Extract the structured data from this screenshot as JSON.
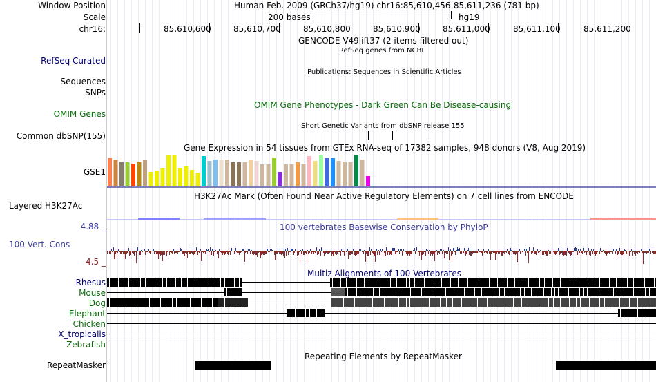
{
  "header": {
    "window_position_label": "Window Position",
    "window_position_text": "Human Feb. 2009 (GRCh37/hg19)   chr16:85,610,456-85,611,236 (781 bp)",
    "scale_label": "Scale",
    "scale_text": "200 bases",
    "scale_assembly": "hg19",
    "chrom_label": "chr16:",
    "ticks": [
      "85,610,600",
      "85,610,700",
      "85,610,800",
      "85,610,900",
      "85,611,000",
      "85,611,100",
      "85,611,200"
    ]
  },
  "tracks": {
    "gencode_title": "GENCODE V49lift37 (2 items filtered out)",
    "refseq_title": "RefSeq genes from NCBI",
    "refseq_label": "RefSeq Curated",
    "publications_title": "Publications: Sequences in Scientific Articles",
    "sequences_label": "Sequences",
    "snps_label": "SNPs",
    "omim_title": "OMIM Gene Phenotypes - Dark Green Can Be Disease-causing",
    "omim_label": "OMIM Genes",
    "dbsnp_title": "Short Genetic Variants from dbSNP release 155",
    "dbsnp_label": "Common dbSNP(155)",
    "gtex_title": "Gene Expression in 54 tissues from GTEx RNA-seq of 17382 samples, 948 donors (V8, Aug 2019)",
    "gtex_label": "GSE1",
    "gtex_bar_colors": [
      "#ff7f50",
      "#cd853f",
      "#8b7d6b",
      "#9acd32",
      "#ff4500",
      "#b8860b",
      "#c0a080",
      "#eeee00",
      "#eeee00",
      "#eeee00",
      "#eeee00",
      "#eeee00",
      "#eeee00",
      "#eeee00",
      "#eeee00",
      "#eeee00",
      "#00cdcd",
      "#9ac0cd",
      "#7ec0ee",
      "#eedfcc",
      "#cdb79e",
      "#8b7355",
      "#8b7355",
      "#cdb79e",
      "#eecfa1",
      "#eed5d2",
      "#cdb79e",
      "#cdb79e",
      "#9acd32",
      "#8a2be2",
      "#cdb79e",
      "#cdb79e",
      "#ee9a49",
      "#cdb79e",
      "#ffb6c1",
      "#eedd82",
      "#9aff9a",
      "#4169e1",
      "#1e90ff",
      "#cdb79e",
      "#cdb79e",
      "#cdb79e",
      "#008b45",
      "#cdb79e",
      "#ee00ee"
    ],
    "gtex_values": [
      0.88,
      0.85,
      0.78,
      0.75,
      0.72,
      0.75,
      0.82,
      0.45,
      0.48,
      0.58,
      1.0,
      1.0,
      0.58,
      0.62,
      0.52,
      0.42,
      0.95,
      0.8,
      0.85,
      0.85,
      0.85,
      0.75,
      0.75,
      0.75,
      0.82,
      0.8,
      0.7,
      0.68,
      0.88,
      0.45,
      0.7,
      0.68,
      0.75,
      0.68,
      0.95,
      0.8,
      1.0,
      0.88,
      0.88,
      0.8,
      0.78,
      0.75,
      1.0,
      0.85,
      0.3
    ],
    "h3k27ac_title": "H3K27Ac Mark (Often Found Near Active Regulatory Elements) on 7 cell lines from ENCODE",
    "h3k27ac_label": "Layered H3K27Ac",
    "phylop_max": "4.88 _",
    "phylop_min": "-4.5 _",
    "phylop_title": "100 vertebrates Basewise Conservation by PhyloP",
    "phylop_label": "100 Vert. Cons",
    "multiz_title": "Multiz Alignments of 100 Vertebrates",
    "species": [
      "Rhesus",
      "Mouse",
      "Dog",
      "Elephant",
      "Chicken",
      "X_tropicalis",
      "Zebrafish"
    ],
    "repeat_title": "Repeating Elements by RepeatMasker",
    "repeat_label": "RepeatMasker"
  },
  "colors": {
    "navy": "#000070",
    "green": "#0a6b0a",
    "phylop_pos": "#1f3b9c",
    "phylop_neg": "#8b2a2a"
  }
}
